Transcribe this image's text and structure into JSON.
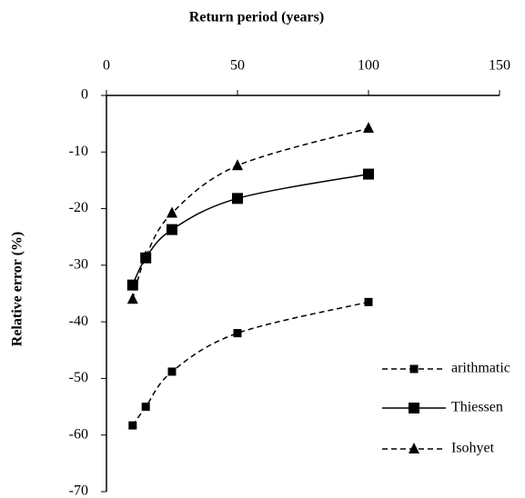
{
  "chart_data": {
    "type": "line",
    "title": "Return period  (years)",
    "y_label": "Relative error (%)",
    "x": [
      10,
      15,
      25,
      50,
      100
    ],
    "series": [
      {
        "name": "arithmatic",
        "color": "#000000",
        "linestyle": "dashed",
        "marker": "square-small",
        "values": [
          -58.3,
          -55,
          -48.8,
          -42,
          -36.5
        ]
      },
      {
        "name": "Thiessen",
        "color": "#000000",
        "linestyle": "solid",
        "marker": "square",
        "values": [
          -33.5,
          -28.7,
          -23.7,
          -18.2,
          -13.9
        ]
      },
      {
        "name": "Isohyet",
        "color": "#000000",
        "linestyle": "dashed",
        "marker": "triangle",
        "values": [
          -36,
          -28.5,
          -20.8,
          -12.4,
          -5.8
        ]
      }
    ],
    "xlim": [
      0,
      150
    ],
    "xticks": [
      0,
      50,
      100,
      150
    ],
    "ylim": [
      -70,
      0
    ],
    "yticks": [
      0,
      -10,
      -20,
      -30,
      -40,
      -50,
      -60,
      -70
    ],
    "legend": "right"
  }
}
